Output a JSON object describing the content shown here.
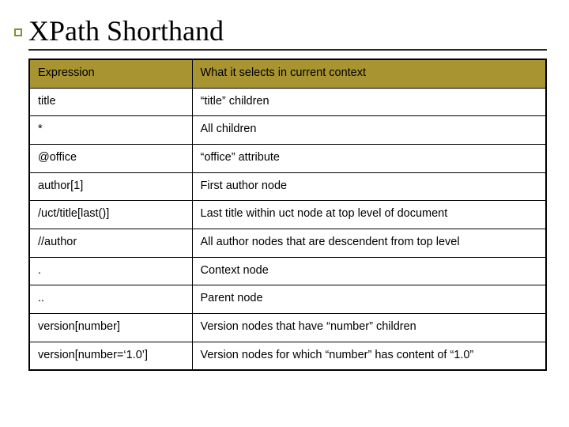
{
  "title": "XPath Shorthand",
  "header_bg": "#a89430",
  "accent_color": "#8c8a3a",
  "table": {
    "columns": [
      "Expression",
      "What it selects in current context"
    ],
    "rows": [
      [
        "title",
        "“title” children"
      ],
      [
        "*",
        "All children"
      ],
      [
        "@office",
        "“office” attribute"
      ],
      [
        "author[1]",
        "First author node"
      ],
      [
        "/uct/title[last()]",
        "Last title within uct node at top level of document"
      ],
      [
        "//author",
        "All author nodes that are descendent from top level"
      ],
      [
        ".",
        "Context node"
      ],
      [
        "..",
        "Parent node"
      ],
      [
        "version[number]",
        "Version nodes that have “number” children"
      ],
      [
        "version[number=‘1.0’]",
        "Version nodes for which “number” has content of “1.0”"
      ]
    ]
  }
}
